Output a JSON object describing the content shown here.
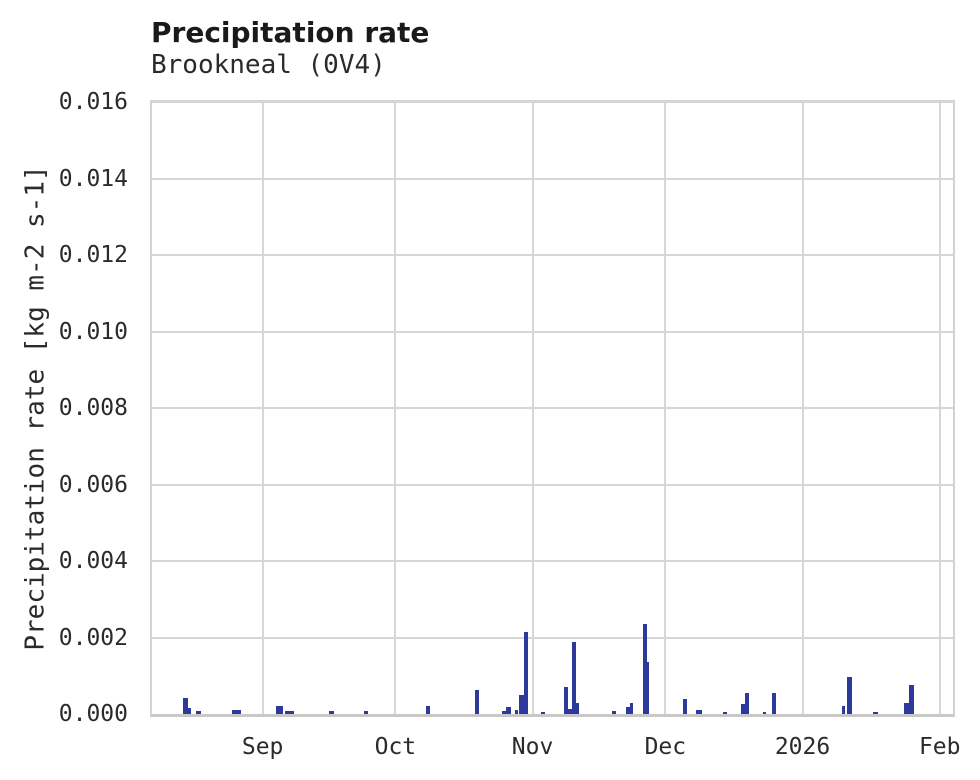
{
  "header": {
    "title": "Precipitation rate",
    "subtitle": "Brookneal (0V4)"
  },
  "chart_data": {
    "type": "bar",
    "title": "Precipitation rate",
    "subtitle": "Brookneal (0V4)",
    "xlabel": "",
    "ylabel": "Precipitation rate [kg m-2 s-1]",
    "ylim": [
      0,
      0.016
    ],
    "x_domain": [
      "2025-08-07",
      "2026-02-04"
    ],
    "grid": true,
    "legend_position": "none",
    "colors": {
      "bar": "#2b3a9b",
      "grid": "#d6d6d6",
      "spine": "#c9c9c9",
      "text": "#2b2b2b",
      "title": "#1a1a1a",
      "background": "#ffffff"
    },
    "yticks": [
      {
        "value": 0.0,
        "label": "0.000"
      },
      {
        "value": 0.002,
        "label": "0.002"
      },
      {
        "value": 0.004,
        "label": "0.004"
      },
      {
        "value": 0.006,
        "label": "0.006"
      },
      {
        "value": 0.008,
        "label": "0.008"
      },
      {
        "value": 0.01,
        "label": "0.010"
      },
      {
        "value": 0.012,
        "label": "0.012"
      },
      {
        "value": 0.014,
        "label": "0.014"
      },
      {
        "value": 0.016,
        "label": "0.016"
      }
    ],
    "xticks": [
      {
        "date": "2025-09-01",
        "label": "Sep"
      },
      {
        "date": "2025-10-01",
        "label": "Oct"
      },
      {
        "date": "2025-11-01",
        "label": "Nov"
      },
      {
        "date": "2025-12-01",
        "label": "Dec"
      },
      {
        "date": "2026-01-01",
        "label": "2026"
      },
      {
        "date": "2026-02-01",
        "label": "Feb"
      }
    ],
    "points": [
      {
        "date": "2025-08-14",
        "value": 0.00042,
        "days": 1.2
      },
      {
        "date": "2025-08-15",
        "value": 0.00015,
        "days": 0.9
      },
      {
        "date": "2025-08-17",
        "value": 8e-05,
        "days": 1.0
      },
      {
        "date": "2025-08-25",
        "value": 0.0001,
        "days": 2.2
      },
      {
        "date": "2025-09-04",
        "value": 0.00021,
        "days": 1.5
      },
      {
        "date": "2025-09-06",
        "value": 9e-05,
        "days": 2.2
      },
      {
        "date": "2025-09-16",
        "value": 8e-05,
        "days": 1.2
      },
      {
        "date": "2025-09-24",
        "value": 8e-05,
        "days": 0.9
      },
      {
        "date": "2025-10-08",
        "value": 0.0002,
        "days": 0.9
      },
      {
        "date": "2025-10-19",
        "value": 0.00062,
        "days": 1.0
      },
      {
        "date": "2025-10-25",
        "value": 8e-05,
        "days": 1.0
      },
      {
        "date": "2025-10-26",
        "value": 0.00018,
        "days": 1.2
      },
      {
        "date": "2025-10-28",
        "value": 0.0001,
        "days": 0.7
      },
      {
        "date": "2025-10-29",
        "value": 0.0005,
        "days": 1.0
      },
      {
        "date": "2025-10-30",
        "value": 0.00214,
        "days": 0.9
      },
      {
        "date": "2025-11-03",
        "value": 6e-05,
        "days": 0.8
      },
      {
        "date": "2025-11-08",
        "value": 0.0007,
        "days": 1.0
      },
      {
        "date": "2025-11-09",
        "value": 0.00012,
        "days": 0.8
      },
      {
        "date": "2025-11-10",
        "value": 0.00187,
        "days": 0.9
      },
      {
        "date": "2025-11-10",
        "value": 0.0003,
        "days": 1.5
      },
      {
        "date": "2025-11-19",
        "value": 8e-05,
        "days": 0.8
      },
      {
        "date": "2025-11-22",
        "value": 0.00018,
        "days": 1.0
      },
      {
        "date": "2025-11-23",
        "value": 0.00028,
        "days": 0.6
      },
      {
        "date": "2025-11-26",
        "value": 0.00236,
        "days": 0.9
      },
      {
        "date": "2025-11-26",
        "value": 0.00135,
        "days": 1.3
      },
      {
        "date": "2025-12-05",
        "value": 0.0004,
        "days": 1.0
      },
      {
        "date": "2025-12-08",
        "value": 0.0001,
        "days": 1.3
      },
      {
        "date": "2025-12-14",
        "value": 5e-05,
        "days": 1.0
      },
      {
        "date": "2025-12-18",
        "value": 0.00026,
        "days": 1.0
      },
      {
        "date": "2025-12-19",
        "value": 0.00055,
        "days": 1.0
      },
      {
        "date": "2025-12-23",
        "value": 6e-05,
        "days": 0.8
      },
      {
        "date": "2025-12-25",
        "value": 0.00055,
        "days": 1.0
      },
      {
        "date": "2026-01-10",
        "value": 0.0002,
        "days": 0.7
      },
      {
        "date": "2026-01-11",
        "value": 0.00096,
        "days": 1.1
      },
      {
        "date": "2026-01-17",
        "value": 5e-05,
        "days": 1.0
      },
      {
        "date": "2026-01-24",
        "value": 0.0003,
        "days": 1.0
      },
      {
        "date": "2026-01-25",
        "value": 0.00076,
        "days": 1.1
      }
    ]
  }
}
